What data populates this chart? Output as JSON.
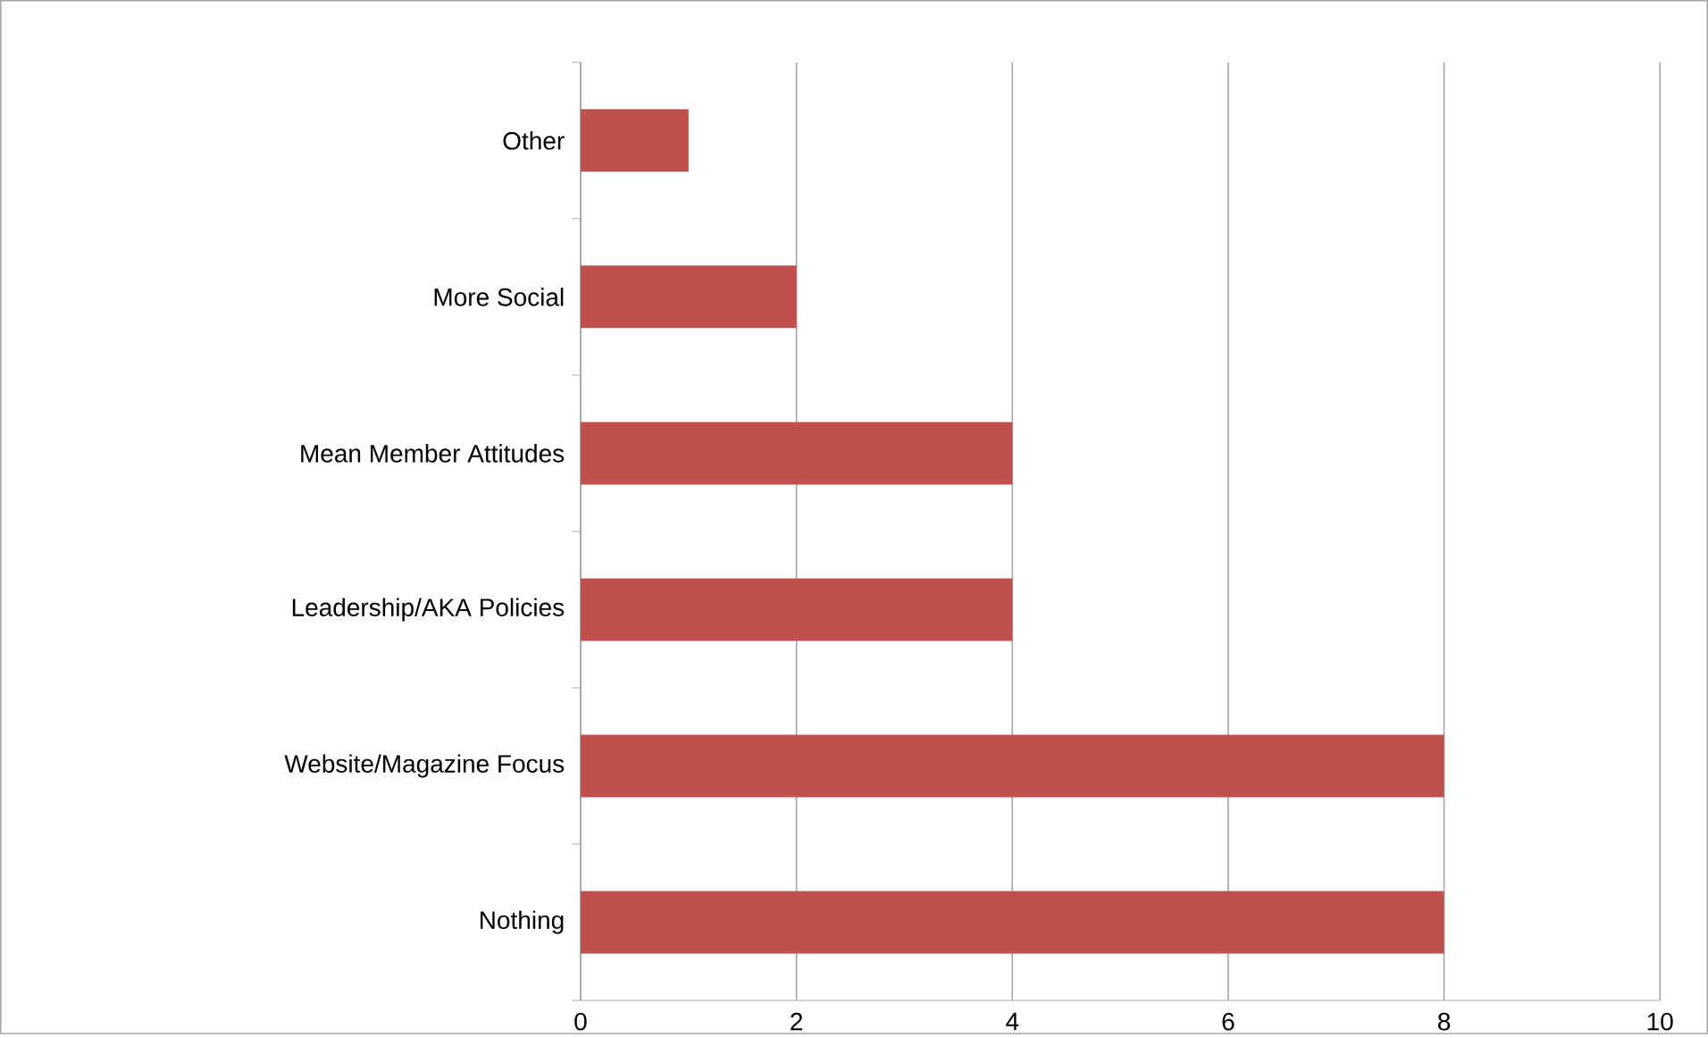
{
  "chart_data": {
    "type": "bar",
    "orientation": "horizontal",
    "categories": [
      "Other",
      "More Social",
      "Mean Member Attitudes",
      "Leadership/AKA Policies",
      "Website/Magazine Focus",
      "Nothing"
    ],
    "values": [
      1,
      2,
      4,
      4,
      8,
      8
    ],
    "color": "#c0504d",
    "xlim": [
      0,
      10
    ],
    "xticks": [
      0,
      2,
      4,
      6,
      8,
      10
    ],
    "grid": "x"
  }
}
